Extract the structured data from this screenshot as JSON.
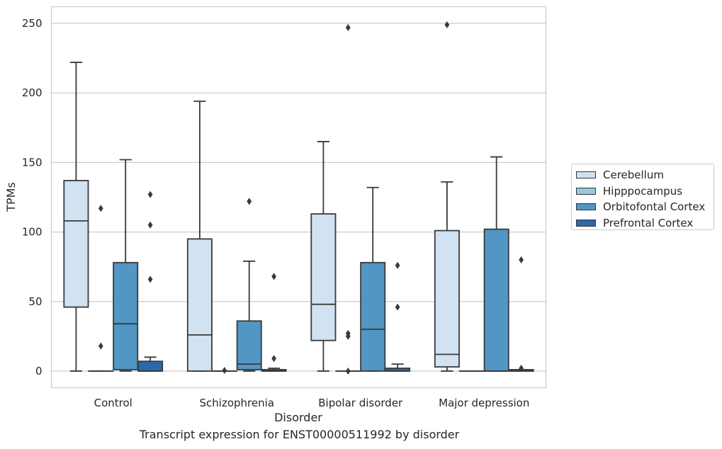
{
  "chart_data": {
    "type": "box",
    "xlabel": "Disorder",
    "ylabel": "TPMs",
    "caption": "Transcript expression for ENST00000511992 by disorder",
    "ylim": [
      -12,
      262
    ],
    "yticks": [
      0,
      50,
      100,
      150,
      200,
      250
    ],
    "grid": true,
    "legend_placement": "right",
    "categories": [
      "Control",
      "Schizophrenia",
      "Bipolar disorder",
      "Major depression"
    ],
    "series": [
      {
        "name": "Cerebellum",
        "color": "#d1e2f2",
        "boxes": [
          {
            "whisker_low": 0,
            "q1": 46,
            "median": 108,
            "q3": 137,
            "whisker_high": 222,
            "outliers": []
          },
          {
            "whisker_low": 0,
            "q1": 0,
            "median": 26,
            "q3": 95,
            "whisker_high": 194,
            "outliers": []
          },
          {
            "whisker_low": 0,
            "q1": 22,
            "median": 48,
            "q3": 113,
            "whisker_high": 165,
            "outliers": []
          },
          {
            "whisker_low": 0,
            "q1": 3,
            "median": 12,
            "q3": 101,
            "whisker_high": 136,
            "outliers": [
              249
            ]
          }
        ]
      },
      {
        "name": "Hipppocampus",
        "color": "#9ac8e0",
        "boxes": [
          {
            "whisker_low": 0,
            "q1": 0,
            "median": 0,
            "q3": 0,
            "whisker_high": 0,
            "outliers": [
              117,
              18
            ]
          },
          {
            "whisker_low": 0,
            "q1": 0,
            "median": 0,
            "q3": 0,
            "whisker_high": 0,
            "outliers": [
              0.5
            ]
          },
          {
            "whisker_low": 0,
            "q1": 0,
            "median": 0,
            "q3": 0,
            "whisker_high": 0,
            "outliers": [
              27,
              25,
              0,
              247
            ]
          },
          {
            "whisker_low": 0,
            "q1": 0,
            "median": 0,
            "q3": 0,
            "whisker_high": 0,
            "outliers": []
          }
        ]
      },
      {
        "name": "Orbitofontal Cortex",
        "color": "#5296c4",
        "boxes": [
          {
            "whisker_low": 0,
            "q1": 1,
            "median": 34,
            "q3": 78,
            "whisker_high": 152,
            "outliers": []
          },
          {
            "whisker_low": 0,
            "q1": 1,
            "median": 5,
            "q3": 36,
            "whisker_high": 79,
            "outliers": [
              122
            ]
          },
          {
            "whisker_low": 0,
            "q1": 0,
            "median": 30,
            "q3": 78,
            "whisker_high": 132,
            "outliers": []
          },
          {
            "whisker_low": 0,
            "q1": 0,
            "median": 0,
            "q3": 102,
            "whisker_high": 154,
            "outliers": []
          }
        ]
      },
      {
        "name": "Prefrontal Cortex",
        "color": "#2a69ab",
        "boxes": [
          {
            "whisker_low": 0,
            "q1": 0,
            "median": 0,
            "q3": 7,
            "whisker_high": 10,
            "outliers": [
              127,
              105,
              66
            ]
          },
          {
            "whisker_low": 0,
            "q1": 0,
            "median": 0,
            "q3": 1,
            "whisker_high": 2,
            "outliers": [
              68,
              9
            ]
          },
          {
            "whisker_low": 0,
            "q1": 0,
            "median": 0,
            "q3": 2,
            "whisker_high": 5,
            "outliers": [
              76,
              46
            ]
          },
          {
            "whisker_low": 0,
            "q1": 0,
            "median": 0,
            "q3": 1,
            "whisker_high": 1,
            "outliers": [
              80,
              2
            ]
          }
        ]
      }
    ]
  }
}
